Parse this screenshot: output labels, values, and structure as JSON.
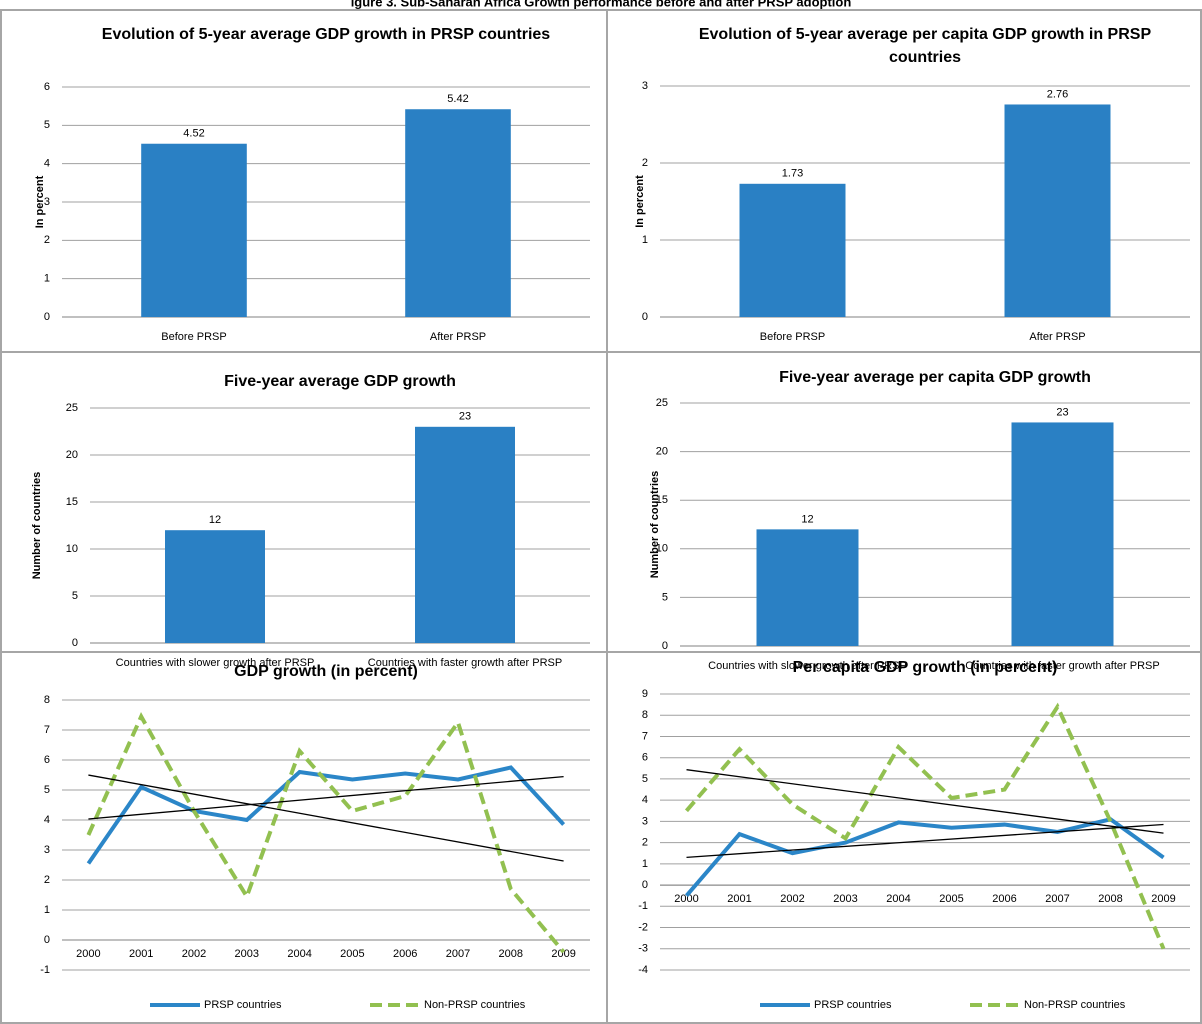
{
  "figure_title": "igure 3. Sub-Saharan Africa Growth performance before and after PRSP adoption",
  "chart_data": [
    {
      "type": "bar",
      "title": "Evolution of 5-year average GDP growth in PRSP countries",
      "y_label": "In percent",
      "categories": [
        "Before PRSP",
        "After PRSP"
      ],
      "values": [
        4.52,
        5.42
      ],
      "color": "#2a80c4",
      "ylim": [
        0,
        6
      ],
      "yticks": [
        0,
        1,
        2,
        3,
        4,
        5,
        6
      ],
      "grid": true
    },
    {
      "type": "bar",
      "title": "Evolution of 5-year average per capita GDP growth in PRSP countries",
      "y_label": "In percent",
      "categories": [
        "Before PRSP",
        "After PRSP"
      ],
      "values": [
        1.73,
        2.76
      ],
      "color": "#2a80c4",
      "ylim": [
        0,
        3
      ],
      "yticks": [
        0,
        1,
        2,
        3
      ],
      "grid": true
    },
    {
      "type": "bar",
      "title": "Five-year average GDP growth",
      "y_label": "Number of countries",
      "categories": [
        "Countries with slower growth after PRSP",
        "Countries with faster growth after PRSP"
      ],
      "values": [
        12,
        23
      ],
      "color": "#2a80c4",
      "ylim": [
        0,
        25
      ],
      "yticks": [
        0,
        5,
        10,
        15,
        20,
        25
      ],
      "grid": true
    },
    {
      "type": "bar",
      "title": "Five-year average per capita GDP growth",
      "y_label": "Number of countries",
      "categories": [
        "Countries with slower growth after PRSP",
        "Countries with faster growth after PRSP"
      ],
      "values": [
        12,
        23
      ],
      "color": "#2a80c4",
      "ylim": [
        0,
        25
      ],
      "yticks": [
        0,
        5,
        10,
        15,
        20,
        25
      ],
      "grid": true
    },
    {
      "type": "line",
      "title": "GDP growth (in percent)",
      "categories": [
        "2000",
        "2001",
        "2002",
        "2003",
        "2004",
        "2005",
        "2006",
        "2007",
        "2008",
        "2009"
      ],
      "series": [
        {
          "name": "PRSP countries",
          "color": "#2b86c8",
          "dashed": false,
          "values": [
            2.55,
            5.1,
            4.3,
            4.0,
            5.6,
            5.35,
            5.55,
            5.35,
            5.75,
            3.85
          ]
        },
        {
          "name": "Non-PRSP countries",
          "color": "#92c050",
          "dashed": true,
          "values": [
            3.5,
            7.45,
            4.3,
            1.45,
            6.3,
            4.3,
            4.8,
            7.25,
            1.7,
            -0.4
          ]
        }
      ],
      "trendlines": true,
      "ylim": [
        -1,
        8
      ],
      "yticks": [
        -1,
        0,
        1,
        2,
        3,
        4,
        5,
        6,
        7,
        8
      ],
      "grid": true,
      "legend": "bottom"
    },
    {
      "type": "line",
      "title": "Per capita GDP growth (in percent)",
      "categories": [
        "2000",
        "2001",
        "2002",
        "2003",
        "2004",
        "2005",
        "2006",
        "2007",
        "2008",
        "2009"
      ],
      "series": [
        {
          "name": "PRSP countries",
          "color": "#2b86c8",
          "dashed": false,
          "values": [
            -0.5,
            2.4,
            1.5,
            2.0,
            2.95,
            2.7,
            2.85,
            2.5,
            3.1,
            1.3
          ]
        },
        {
          "name": "Non-PRSP countries",
          "color": "#92c050",
          "dashed": true,
          "values": [
            3.5,
            6.4,
            3.8,
            2.2,
            6.5,
            4.1,
            4.5,
            8.4,
            3.0,
            -3.0
          ]
        }
      ],
      "trendlines": true,
      "ylim": [
        -4,
        9
      ],
      "yticks": [
        -4,
        -3,
        -2,
        -1,
        0,
        1,
        2,
        3,
        4,
        5,
        6,
        7,
        8,
        9
      ],
      "grid": true,
      "legend": "bottom"
    }
  ]
}
